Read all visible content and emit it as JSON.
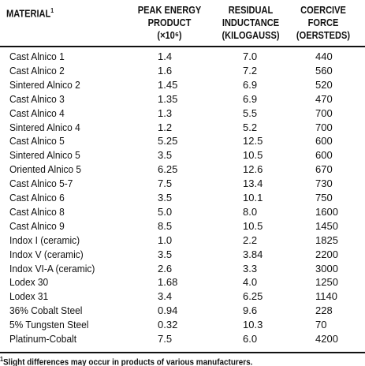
{
  "table": {
    "header": {
      "material": "MATERIAL",
      "material_note": "1",
      "columns": [
        [
          "PEAK ENERGY",
          "PRODUCT",
          "(×10⁶)"
        ],
        [
          "RESIDUAL",
          "INDUCTANCE",
          "(KILOGAUSS)"
        ],
        [
          "COERCIVE",
          "FORCE",
          "(OERSTEDS)"
        ]
      ]
    },
    "rows": [
      [
        "Cast Alnico 1",
        "1.4",
        "7.0",
        "440"
      ],
      [
        "Cast Alnico 2",
        "1.6",
        "7.2",
        "560"
      ],
      [
        "Sintered Alnico 2",
        "1.45",
        "6.9",
        "520"
      ],
      [
        "Cast Alnico 3",
        "1.35",
        "6.9",
        "470"
      ],
      [
        "Cast Alnico 4",
        "1.3",
        "5.5",
        "700"
      ],
      [
        "Sintered Alnico 4",
        "1.2",
        "5.2",
        "700"
      ],
      [
        "Cast Alnico 5",
        "5.25",
        "12.5",
        "600"
      ],
      [
        "Sintered Alnico 5",
        "3.5",
        "10.5",
        "600"
      ],
      [
        "Oriented Alnico 5",
        "6.25",
        "12.6",
        "670"
      ],
      [
        "Cast Alnico 5-7",
        "7.5",
        "13.4",
        "730"
      ],
      [
        "Cast Alnico 6",
        "3.5",
        "10.1",
        "750"
      ],
      [
        "Cast Alnico 8",
        "5.0",
        "8.0",
        "1600"
      ],
      [
        "Cast Alnico 9",
        "8.5",
        "10.5",
        "1450"
      ],
      [
        "Indox I (ceramic)",
        "1.0",
        "2.2",
        "1825"
      ],
      [
        "Indox V (ceramic)",
        "3.5",
        "3.84",
        "2200"
      ],
      [
        "Indox VI-A (ceramic)",
        "2.6",
        "3.3",
        "3000"
      ],
      [
        "Lodex 30",
        "1.68",
        "4.0",
        "1250"
      ],
      [
        "Lodex 31",
        "3.4",
        "6.25",
        "1140"
      ],
      [
        "36% Cobalt Steel",
        "0.94",
        "9.6",
        "228"
      ],
      [
        "5% Tungsten Steel",
        "0.32",
        "10.3",
        "70"
      ],
      [
        "Platinum-Cobalt",
        "7.5",
        "6.0",
        "4200"
      ]
    ],
    "footnote_mark": "1",
    "footnote": "Slight differences may occur in products of various manufacturers."
  }
}
